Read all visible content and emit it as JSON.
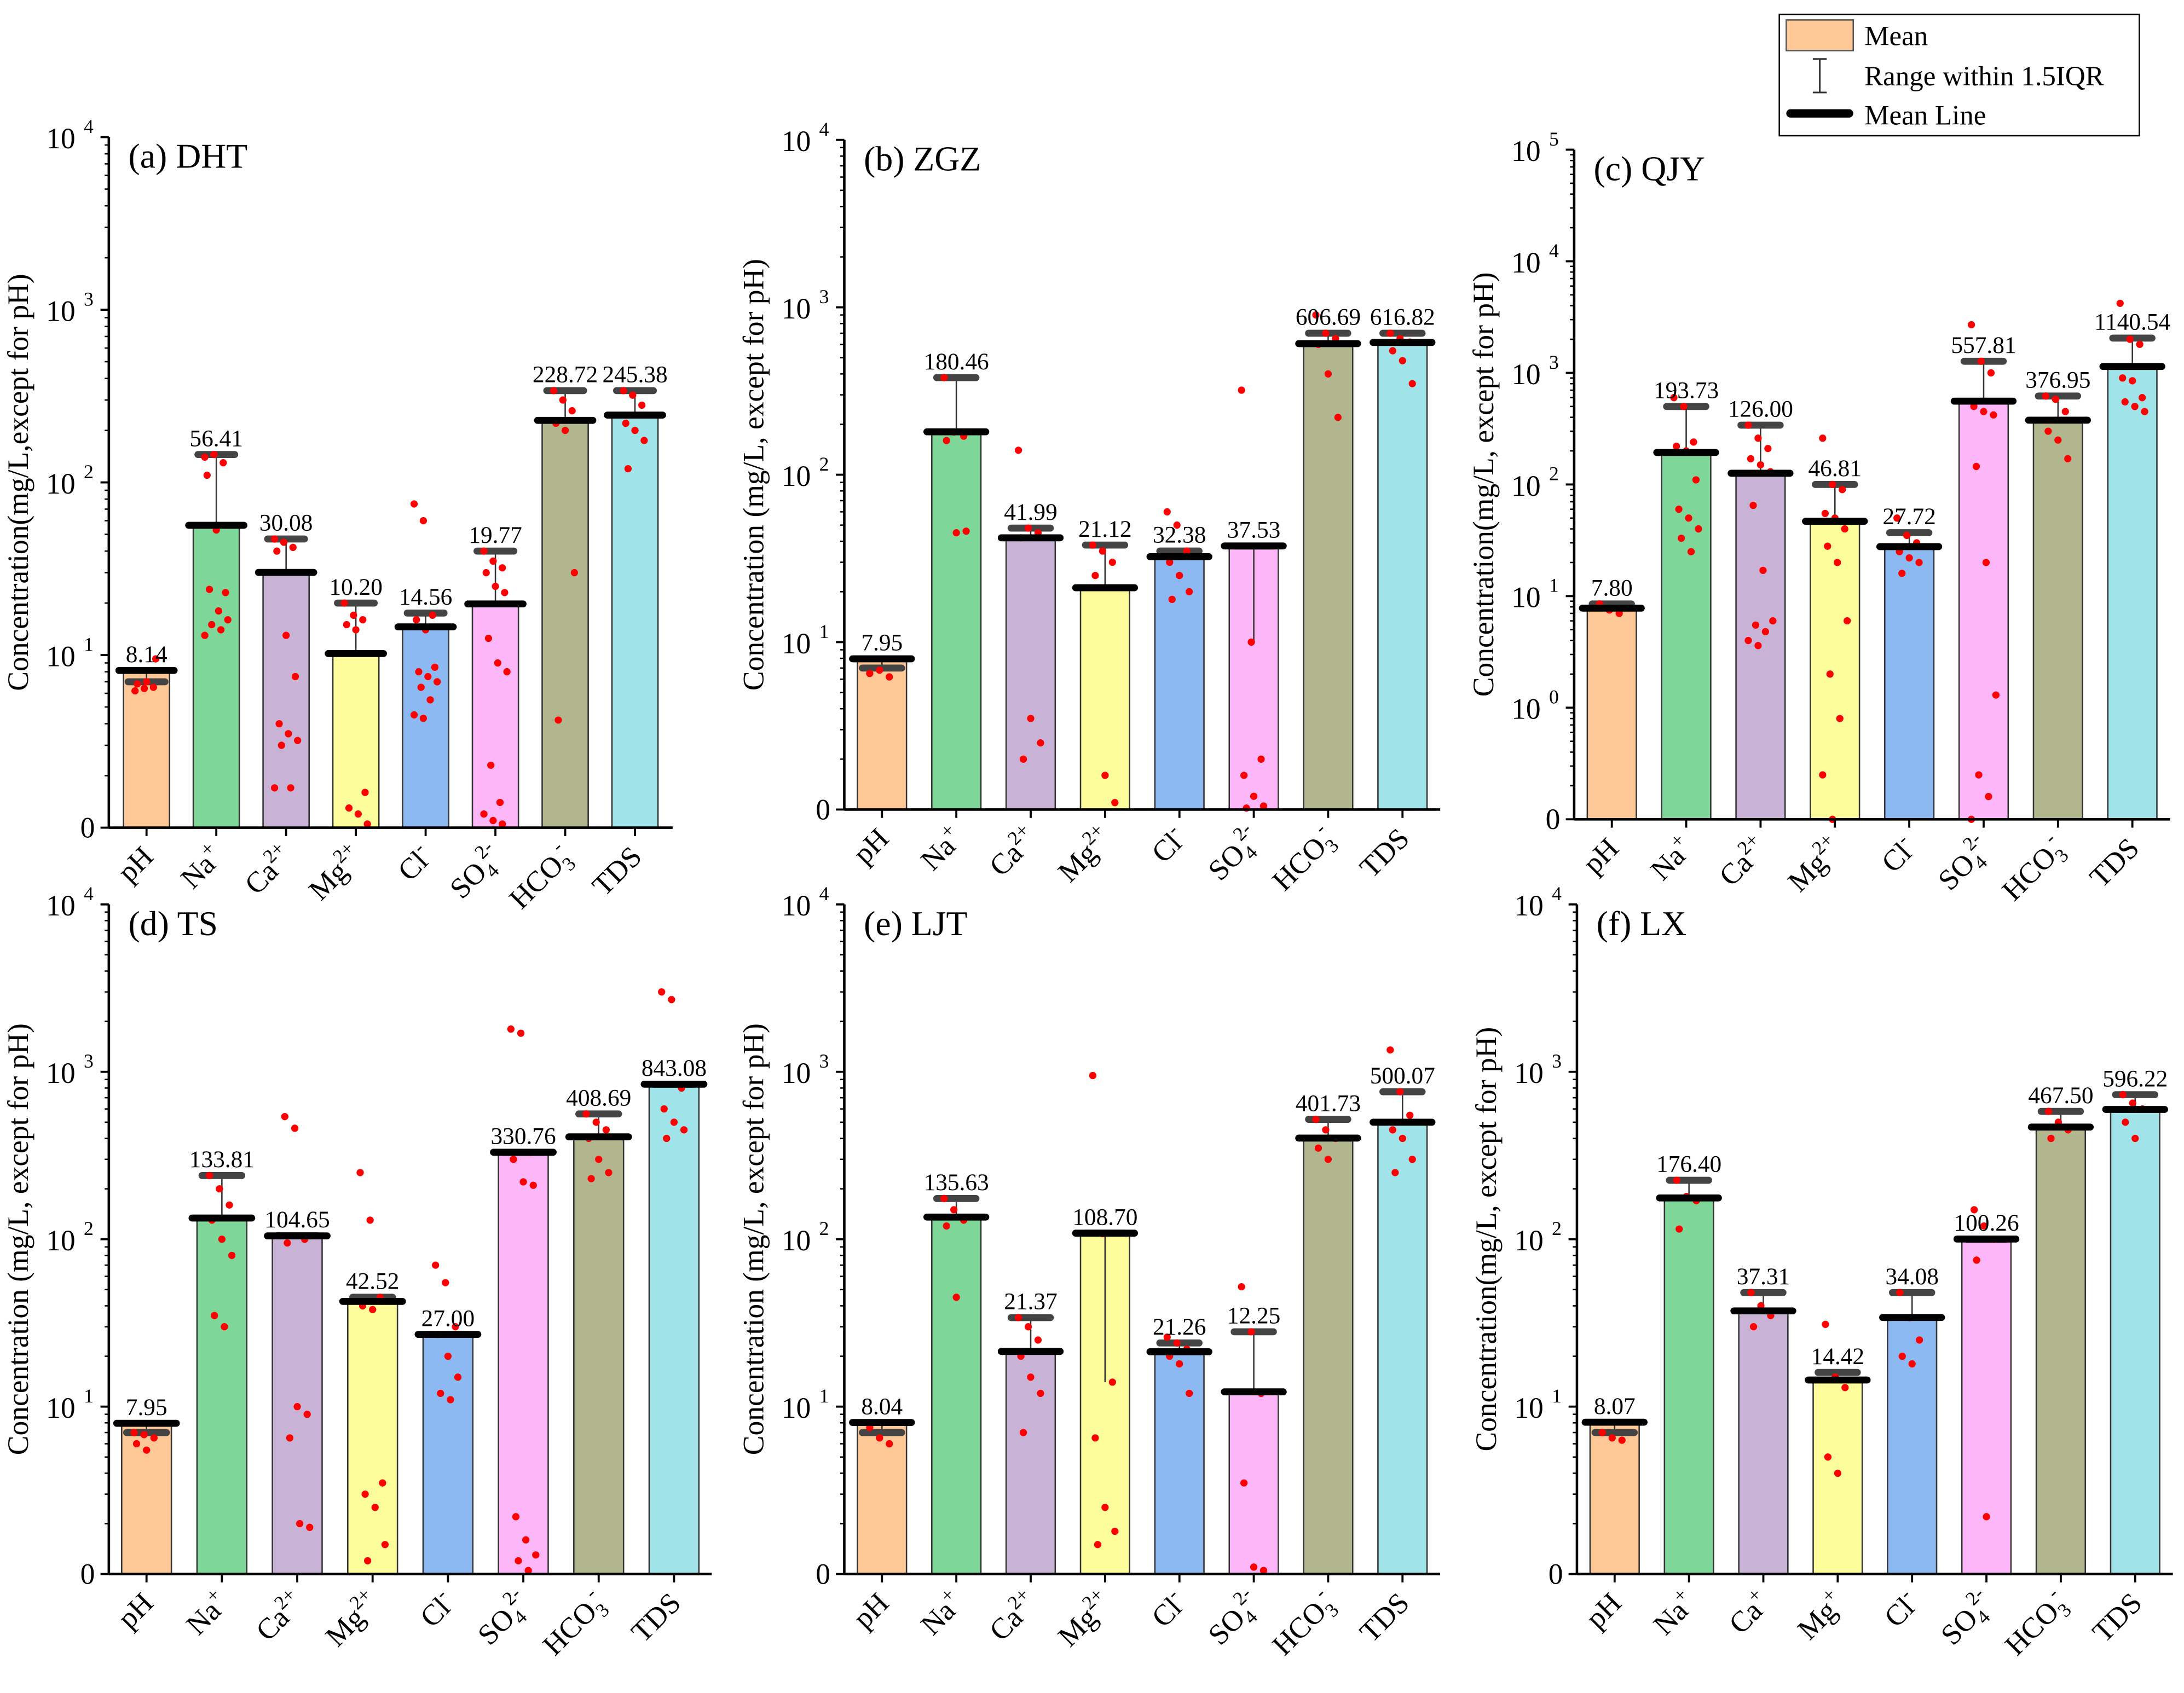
{
  "legend": {
    "items": [
      {
        "label": "Mean",
        "kind": "swatch",
        "color": "#FDC896"
      },
      {
        "label": "Range within 1.5IQR",
        "kind": "errorbar"
      },
      {
        "label": "Mean Line",
        "kind": "line"
      }
    ]
  },
  "colors": [
    "#FDC896",
    "#7FD699",
    "#C8B3D6",
    "#FEFD9B",
    "#8DB9F2",
    "#FDB6F8",
    "#B1B68E",
    "#A0E3E8"
  ],
  "chart_data": [
    {
      "type": "bar",
      "title": "(a) DHT",
      "ylabel": "Concentration(mg/L,except for pH)",
      "yscale": "log",
      "ylim_log10": [
        0,
        4
      ],
      "ytick_bottom_label": "0",
      "ytick_exponents": [
        "1",
        "2",
        "3",
        "4"
      ],
      "categories": [
        {
          "base": "pH"
        },
        {
          "base": "Na",
          "sup": "+"
        },
        {
          "base": "Ca",
          "sup": "2+"
        },
        {
          "base": "Mg",
          "sup": "2+"
        },
        {
          "base": "Cl",
          "sup": "-"
        },
        {
          "base": "SO",
          "sub": "4",
          "sup": "2-"
        },
        {
          "base": "HCO",
          "sub": "3",
          "sup": "-"
        },
        {
          "base": "TDS"
        }
      ],
      "means": [
        "8.14",
        "56.41",
        "30.08",
        "10.20",
        "14.56",
        "19.77",
        "228.72",
        "245.38"
      ],
      "whisker_high": [
        7,
        145,
        47,
        20,
        17.5,
        40,
        340,
        340
      ],
      "whisker_low": [
        null,
        null,
        null,
        null,
        null,
        null,
        null,
        null
      ],
      "points": [
        [
          6.2,
          6.4,
          6.5,
          6.8,
          7,
          9.5
        ],
        [
          140,
          145,
          130,
          110,
          53,
          23,
          24,
          18,
          16,
          15,
          14,
          13
        ],
        [
          47,
          45,
          42,
          40,
          13,
          7.5,
          4,
          3.5,
          3.2,
          3,
          1.7,
          1.7
        ],
        [
          20,
          17,
          16,
          15,
          14,
          1.6,
          1.3,
          1.2,
          1.05
        ],
        [
          75,
          60,
          17,
          16,
          14,
          8.5,
          8,
          7.5,
          7,
          6.5,
          5.5,
          4.5,
          4.3
        ],
        [
          40,
          35,
          32,
          30,
          25,
          23,
          12.5,
          9,
          8,
          2.3,
          1.4,
          1.2,
          1.1,
          1.05
        ],
        [
          340,
          300,
          260,
          220,
          200,
          30,
          4.2
        ],
        [
          340,
          320,
          280,
          220,
          200,
          175,
          120
        ]
      ]
    },
    {
      "type": "bar",
      "title": "(b) ZGZ",
      "ylabel": "Concentration (mg/L, except for pH)",
      "yscale": "log",
      "ylim_log10": [
        0,
        4
      ],
      "ytick_bottom_label": "0",
      "ytick_exponents": [
        "1",
        "2",
        "3",
        "4"
      ],
      "categories": [
        {
          "base": "pH"
        },
        {
          "base": "Na",
          "sup": "+"
        },
        {
          "base": "Ca",
          "sup": "2+"
        },
        {
          "base": "Mg",
          "sup": "2+"
        },
        {
          "base": "Cl",
          "sup": "-"
        },
        {
          "base": "SO",
          "sub": "4",
          "sup": "2-"
        },
        {
          "base": "HCO",
          "sub": "3",
          "sup": "-"
        },
        {
          "base": "TDS"
        }
      ],
      "means": [
        "7.95",
        "180.46",
        "41.99",
        "21.12",
        "32.38",
        "37.53",
        "606.69",
        "616.82"
      ],
      "whisker_high": [
        7,
        380,
        48,
        38,
        35,
        37.5,
        700,
        700
      ],
      "whisker_low": [
        null,
        null,
        null,
        null,
        null,
        10,
        null,
        null
      ],
      "points": [
        [
          6.5,
          6.8,
          6.2
        ],
        [
          380,
          180,
          170,
          160,
          45,
          46
        ],
        [
          140,
          48,
          45,
          42,
          3.5,
          2.5,
          2
        ],
        [
          38,
          35,
          30,
          25,
          1.6,
          1.1
        ],
        [
          60,
          50,
          35,
          30,
          25,
          20,
          18
        ],
        [
          320,
          10,
          2,
          1.6,
          1.2,
          1.05,
          1.02
        ],
        [
          900,
          700,
          650,
          600,
          400,
          220
        ],
        [
          700,
          650,
          620,
          550,
          480,
          350
        ]
      ]
    },
    {
      "type": "bar",
      "title": "(c) QJY",
      "ylabel": "Concentration(mg/L,   except for pH)",
      "yscale": "log",
      "ylim_log10": [
        -1,
        5
      ],
      "ytick_bottom_label": "0",
      "ytick_exponents": [
        "0",
        "1",
        "2",
        "3",
        "4",
        "5"
      ],
      "categories": [
        {
          "base": "pH"
        },
        {
          "base": "Na",
          "sup": "+"
        },
        {
          "base": "Ca",
          "sup": "2+"
        },
        {
          "base": "Mg",
          "sup": "2+"
        },
        {
          "base": "Cl",
          "sup": "-"
        },
        {
          "base": "SO",
          "sub": "4",
          "sup": "2-"
        },
        {
          "base": "HCO",
          "sub": "3",
          "sup": "-"
        },
        {
          "base": "TDS"
        }
      ],
      "means": [
        "7.80",
        "193.73",
        "126.00",
        "46.81",
        "27.72",
        "557.81",
        "376.95",
        "1140.54"
      ],
      "whisker_high": [
        8.5,
        500,
        340,
        100,
        37,
        1270,
        620,
        2050
      ],
      "whisker_low": [
        null,
        null,
        null,
        null,
        null,
        null,
        null,
        null
      ],
      "points": [
        [
          8.5,
          7.5,
          7
        ],
        [
          600,
          500,
          240,
          220,
          200,
          110,
          60,
          50,
          40,
          33,
          25
        ],
        [
          340,
          260,
          210,
          170,
          150,
          130,
          65,
          17,
          6,
          5.5,
          4.8,
          4,
          3.6
        ],
        [
          260,
          100,
          90,
          55,
          50,
          40,
          28,
          20,
          6,
          2,
          0.8,
          0.25,
          0.1
        ],
        [
          50,
          35,
          30,
          25,
          22,
          20,
          16
        ],
        [
          2700,
          1270,
          1000,
          500,
          450,
          420,
          145,
          20,
          1.3,
          0.25,
          0.16,
          0.1
        ],
        [
          620,
          580,
          450,
          300,
          250,
          170
        ],
        [
          4200,
          2000,
          1800,
          900,
          850,
          600,
          550,
          500,
          450
        ]
      ]
    },
    {
      "type": "bar",
      "title": "(d) TS",
      "ylabel": "Concentration (mg/L, except for pH)",
      "yscale": "log",
      "ylim_log10": [
        0,
        4
      ],
      "ytick_bottom_label": "0",
      "ytick_exponents": [
        "1",
        "2",
        "3",
        "4"
      ],
      "categories": [
        {
          "base": "pH"
        },
        {
          "base": "Na",
          "sup": "+"
        },
        {
          "base": "Ca",
          "sup": "2+"
        },
        {
          "base": "Mg",
          "sup": "2+"
        },
        {
          "base": "Cl",
          "sup": "-"
        },
        {
          "base": "SO",
          "sub": "4",
          "sup": "2-"
        },
        {
          "base": "HCO",
          "sub": "3",
          "sup": "-"
        },
        {
          "base": "TDS"
        }
      ],
      "means": [
        "7.95",
        "133.81",
        "104.65",
        "42.52",
        "27.00",
        "330.76",
        "408.69",
        "843.08"
      ],
      "whisker_high": [
        7,
        240,
        105,
        45,
        27,
        330,
        560,
        843
      ],
      "whisker_low": [
        null,
        null,
        null,
        null,
        null,
        null,
        null,
        null
      ],
      "points": [
        [
          7,
          6.8,
          6.5,
          6,
          5.5
        ],
        [
          240,
          200,
          160,
          130,
          100,
          80,
          35,
          30
        ],
        [
          540,
          460,
          100,
          95,
          10,
          9,
          6.5,
          2,
          1.9
        ],
        [
          250,
          130,
          45,
          40,
          38,
          3.5,
          3,
          2.5,
          1.5,
          1.2
        ],
        [
          70,
          55,
          30,
          27,
          20,
          15,
          12,
          11
        ],
        [
          1800,
          1700,
          330,
          300,
          220,
          210,
          2.2,
          1.6,
          1.3,
          1.2,
          1.05
        ],
        [
          560,
          500,
          450,
          400,
          300,
          250,
          230
        ],
        [
          3000,
          2700,
          800,
          600,
          500,
          450,
          400
        ]
      ]
    },
    {
      "type": "bar",
      "title": "(e) LJT",
      "ylabel": "Concentration (mg/L, except for pH)",
      "yscale": "log",
      "ylim_log10": [
        0,
        4
      ],
      "ytick_bottom_label": "0",
      "ytick_exponents": [
        "1",
        "2",
        "3",
        "4"
      ],
      "categories": [
        {
          "base": "pH"
        },
        {
          "base": "Na",
          "sup": "+"
        },
        {
          "base": "Ca",
          "sup": "2+"
        },
        {
          "base": "Mg",
          "sup": "2+"
        },
        {
          "base": "Cl",
          "sup": "-"
        },
        {
          "base": "SO",
          "sub": "4",
          "sup": "2-"
        },
        {
          "base": "HCO",
          "sub": "3",
          "sup": "-"
        },
        {
          "base": "TDS"
        }
      ],
      "means": [
        "8.04",
        "135.63",
        "21.37",
        "108.70",
        "21.26",
        "12.25",
        "401.73",
        "500.07"
      ],
      "whisker_high": [
        7,
        175,
        34,
        108.7,
        24,
        28,
        520,
        760
      ],
      "whisker_low": [
        null,
        null,
        null,
        14,
        null,
        null,
        null,
        null
      ],
      "points": [
        [
          7.5,
          6.5,
          6
        ],
        [
          175,
          150,
          130,
          120,
          45
        ],
        [
          34,
          30,
          25,
          20,
          15,
          12,
          7
        ],
        [
          950,
          108,
          14,
          6.5,
          2.5,
          1.8,
          1.5
        ],
        [
          26,
          24,
          22,
          20,
          18,
          12
        ],
        [
          52,
          28,
          12,
          3.5,
          1.1,
          1.05
        ],
        [
          520,
          450,
          400,
          350,
          300
        ],
        [
          1350,
          760,
          550,
          450,
          400,
          300,
          250
        ]
      ]
    },
    {
      "type": "bar",
      "title": "(f) LX",
      "ylabel": "Concentration(mg/L,   except for pH)",
      "yscale": "log",
      "ylim_log10": [
        0,
        4
      ],
      "ytick_bottom_label": "0",
      "ytick_exponents": [
        "1",
        "2",
        "3",
        "4"
      ],
      "categories": [
        {
          "base": "pH"
        },
        {
          "base": "Na",
          "sup": "+"
        },
        {
          "base": "Ca",
          "sup": "+"
        },
        {
          "base": "Mg",
          "sup": "+"
        },
        {
          "base": "Cl",
          "sup": "-"
        },
        {
          "base": "SO",
          "sub": "4",
          "sup": "2-"
        },
        {
          "base": "HCO",
          "sub": "3",
          "sup": "-"
        },
        {
          "base": "TDS"
        }
      ],
      "means": [
        "8.07",
        "176.40",
        "37.31",
        "14.42",
        "34.08",
        "100.26",
        "467.50",
        "596.22"
      ],
      "whisker_high": [
        7,
        225,
        48,
        16,
        48,
        100,
        580,
        730
      ],
      "whisker_low": [
        null,
        null,
        null,
        null,
        null,
        null,
        null,
        null
      ],
      "points": [
        [
          7,
          6.5,
          6.3
        ],
        [
          225,
          180,
          170,
          115
        ],
        [
          48,
          40,
          35,
          30
        ],
        [
          31,
          15,
          13,
          5,
          4
        ],
        [
          48,
          34,
          25,
          20,
          18
        ],
        [
          150,
          120,
          100,
          75,
          2.2
        ],
        [
          580,
          500,
          450,
          400
        ],
        [
          730,
          650,
          600,
          500,
          400
        ]
      ]
    }
  ]
}
